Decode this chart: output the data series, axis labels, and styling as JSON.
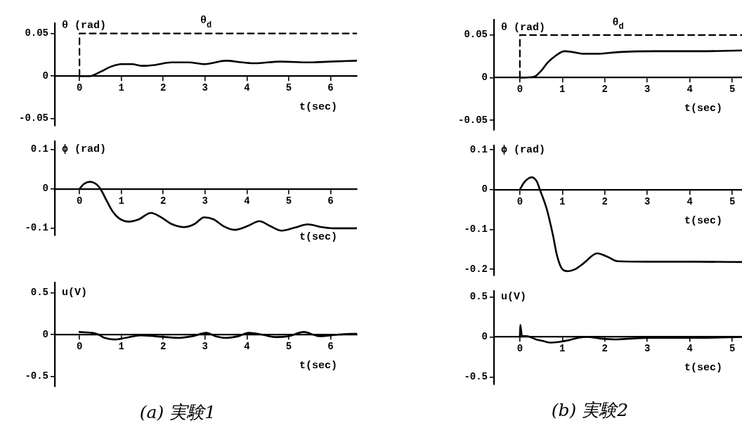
{
  "chart_data": [
    {
      "type": "line",
      "xlabel": "t(sec)",
      "ylabel": "θ (rad)",
      "xlim": [
        -0.59,
        6.63
      ],
      "ylim": [
        -0.058,
        0.062
      ],
      "xticks": [
        0,
        1,
        2,
        3,
        4,
        5,
        6
      ],
      "yticks": [
        -0.05,
        0,
        0.05
      ],
      "marker": "none",
      "series": [
        {
          "name": "θ$_{d}$",
          "color": "#000000",
          "line_style": "dashed",
          "x": [
            0,
            0,
            6.63
          ],
          "values": [
            0,
            0.05,
            0.05
          ]
        },
        {
          "color": "#000000",
          "x": [
            0,
            0.25,
            0.5,
            0.75,
            1,
            1.25,
            1.5,
            1.8,
            2.2,
            2.6,
            3,
            3.5,
            3.9,
            4.2,
            4.8,
            5.5,
            6,
            6.63
          ],
          "values": [
            0,
            0,
            0.005,
            0.011,
            0.014,
            0.014,
            0.012,
            0.013,
            0.016,
            0.016,
            0.014,
            0.018,
            0.016,
            0.015,
            0.017,
            0.016,
            0.017,
            0.018
          ]
        }
      ]
    },
    {
      "type": "line",
      "xlabel": "t(sec)",
      "ylabel": "ϕ (rad)",
      "xlim": [
        -0.59,
        6.63
      ],
      "ylim": [
        -0.118,
        0.12
      ],
      "xticks": [
        0,
        1,
        2,
        3,
        4,
        5,
        6
      ],
      "yticks": [
        -0.1,
        0,
        0.1
      ],
      "marker": "none",
      "series": [
        {
          "color": "#000000",
          "x": [
            0,
            0.1,
            0.25,
            0.4,
            0.5,
            0.65,
            0.79,
            0.95,
            1.18,
            1.4,
            1.71,
            1.95,
            2.2,
            2.5,
            2.75,
            2.98,
            3.2,
            3.45,
            3.71,
            4,
            4.3,
            4.55,
            4.83,
            5.15,
            5.45,
            5.8,
            6.07,
            6.63
          ],
          "values": [
            0,
            0.012,
            0.018,
            0.012,
            0,
            -0.03,
            -0.057,
            -0.075,
            -0.083,
            -0.078,
            -0.061,
            -0.072,
            -0.089,
            -0.097,
            -0.089,
            -0.072,
            -0.077,
            -0.095,
            -0.104,
            -0.095,
            -0.082,
            -0.094,
            -0.106,
            -0.098,
            -0.09,
            -0.097,
            -0.1,
            -0.1
          ]
        }
      ]
    },
    {
      "type": "line",
      "xlabel": "t(sec)",
      "ylabel": "u(V)",
      "xlim": [
        -0.59,
        6.63
      ],
      "ylim": [
        -0.62,
        0.62
      ],
      "xticks": [
        0,
        1,
        2,
        3,
        4,
        5,
        6
      ],
      "yticks": [
        -0.5,
        0,
        0.5
      ],
      "marker": "none",
      "annotations": [
        "(a) 実験1"
      ],
      "series": [
        {
          "color": "#000000",
          "x": [
            0,
            0.3,
            0.45,
            0.6,
            0.85,
            1.1,
            1.46,
            1.8,
            2.36,
            2.7,
            3.03,
            3.25,
            3.5,
            3.8,
            4.04,
            4.35,
            4.66,
            5,
            5.36,
            5.73,
            6.2,
            6.63
          ],
          "values": [
            0.03,
            0.02,
            0,
            -0.04,
            -0.06,
            -0.04,
            -0.01,
            -0.02,
            -0.04,
            -0.02,
            0.02,
            -0.02,
            -0.04,
            -0.02,
            0.02,
            0,
            -0.03,
            -0.02,
            0.03,
            -0.02,
            0,
            0.01
          ]
        }
      ]
    },
    {
      "type": "line",
      "xlabel": "t(sec)",
      "ylabel": "θ (rad)",
      "xlim": [
        -0.61,
        5.23
      ],
      "ylim": [
        -0.061,
        0.068
      ],
      "xticks": [
        0,
        1,
        2,
        3,
        4,
        5
      ],
      "yticks": [
        -0.05,
        0,
        0.05
      ],
      "marker": "none",
      "series": [
        {
          "name": "θ$_{d}$",
          "color": "#000000",
          "line_style": "dashed",
          "x": [
            0,
            0,
            5.23
          ],
          "values": [
            0,
            0.05,
            0.05
          ]
        },
        {
          "color": "#000000",
          "x": [
            0,
            0.33,
            0.5,
            0.66,
            0.85,
            1.05,
            1.25,
            1.5,
            1.82,
            2.32,
            3.15,
            4.25,
            5.23
          ],
          "values": [
            0,
            0.001,
            0.008,
            0.018,
            0.026,
            0.031,
            0.03,
            0.028,
            0.028,
            0.03,
            0.031,
            0.031,
            0.032
          ]
        }
      ]
    },
    {
      "type": "line",
      "xlabel": "t(sec)",
      "ylabel": "ϕ (rad)",
      "xlim": [
        -0.61,
        5.23
      ],
      "ylim": [
        -0.215,
        0.11
      ],
      "xticks": [
        0,
        1,
        2,
        3,
        4,
        5
      ],
      "yticks": [
        -0.2,
        -0.1,
        0,
        0.1
      ],
      "marker": "none",
      "series": [
        {
          "color": "#000000",
          "x": [
            0,
            0.1,
            0.28,
            0.4,
            0.47,
            0.63,
            0.77,
            0.88,
            1,
            1.13,
            1.3,
            1.5,
            1.82,
            2.05,
            2.3,
            3,
            4,
            5.23
          ],
          "values": [
            0,
            0.018,
            0.031,
            0.02,
            0,
            -0.048,
            -0.11,
            -0.168,
            -0.2,
            -0.205,
            -0.2,
            -0.185,
            -0.16,
            -0.168,
            -0.18,
            -0.181,
            -0.181,
            -0.182
          ]
        }
      ]
    },
    {
      "type": "line",
      "xlabel": "t(sec)",
      "ylabel": "u(V)",
      "xlim": [
        -0.61,
        5.23
      ],
      "ylim": [
        -0.59,
        0.57
      ],
      "xticks": [
        0,
        1,
        2,
        3,
        4,
        5
      ],
      "yticks": [
        -0.5,
        0,
        0.5
      ],
      "marker": "none",
      "annotations": [
        "(b) 実験2"
      ],
      "series": [
        {
          "color": "#000000",
          "x": [
            0,
            0.01,
            0.05,
            0.16,
            0.38,
            0.55,
            0.71,
            0.93,
            1.15,
            1.37,
            1.59,
            1.92,
            2.25,
            2.58,
            3.13,
            4.23,
            5.23
          ],
          "values": [
            0,
            0.15,
            0.01,
            0.01,
            -0.03,
            -0.05,
            -0.07,
            -0.06,
            -0.04,
            -0.01,
            0,
            -0.02,
            -0.03,
            -0.02,
            -0.01,
            -0.01,
            0
          ]
        }
      ]
    }
  ]
}
